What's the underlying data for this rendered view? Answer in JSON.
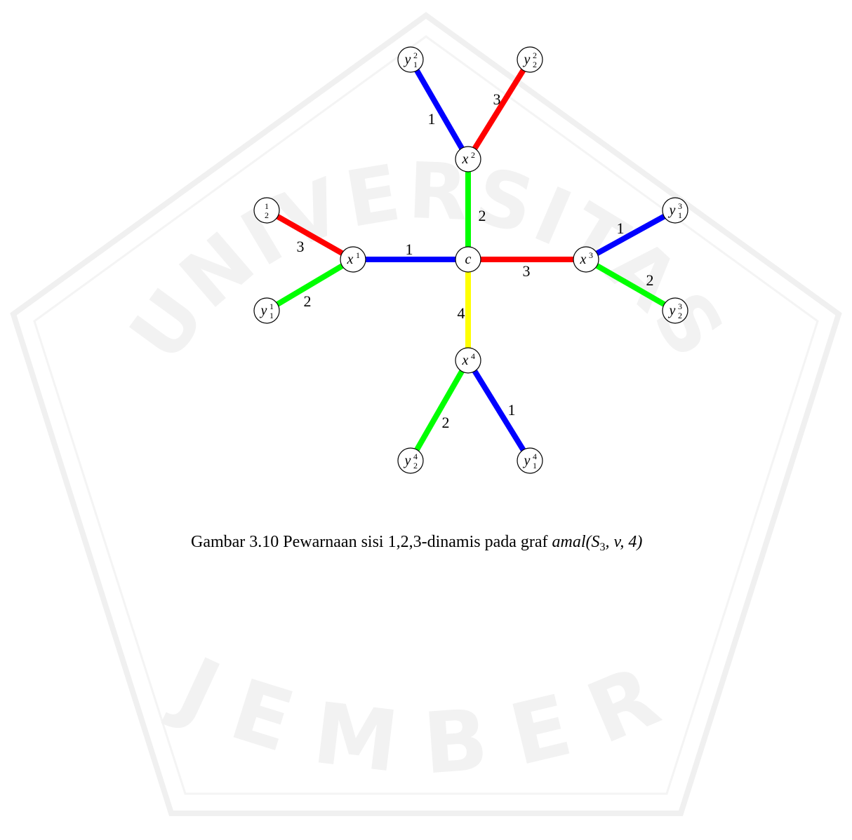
{
  "watermark": {
    "top": "UNIVERSITAS",
    "bottom": "JEMBER"
  },
  "nodes": [
    {
      "base": "c"
    },
    {
      "base": "x",
      "sup": "1"
    },
    {
      "base": "x",
      "sup": "2"
    },
    {
      "base": "x",
      "sup": "3"
    },
    {
      "base": "x",
      "sup": "4"
    },
    {
      "base": "y",
      "sub": "1",
      "sup": "2"
    },
    {
      "base": "y",
      "sub": "2",
      "sup": "2"
    },
    {
      "sup": "1",
      "sub": "2"
    },
    {
      "base": "y",
      "sub": "1",
      "sup": "1"
    },
    {
      "base": "y",
      "sub": "1",
      "sup": "3"
    },
    {
      "base": "y",
      "sub": "2",
      "sup": "3"
    },
    {
      "base": "y",
      "sub": "2",
      "sup": "4"
    },
    {
      "base": "y",
      "sub": "1",
      "sup": "4"
    }
  ],
  "edges": [
    {
      "from": 1,
      "to": 0,
      "label": "1",
      "color": "#0000ff"
    },
    {
      "from": 0,
      "to": 2,
      "label": "2",
      "color": "#00ff00"
    },
    {
      "from": 0,
      "to": 3,
      "label": "3",
      "color": "#ff0000"
    },
    {
      "from": 0,
      "to": 4,
      "label": "4",
      "color": "#ffff00"
    },
    {
      "from": 2,
      "to": 5,
      "label": "1",
      "color": "#0000ff"
    },
    {
      "from": 2,
      "to": 6,
      "label": "3",
      "color": "#ff0000"
    },
    {
      "from": 1,
      "to": 7,
      "label": "3",
      "color": "#ff0000"
    },
    {
      "from": 1,
      "to": 8,
      "label": "2",
      "color": "#00ff00"
    },
    {
      "from": 3,
      "to": 9,
      "label": "1",
      "color": "#0000ff"
    },
    {
      "from": 3,
      "to": 10,
      "label": "2",
      "color": "#00ff00"
    },
    {
      "from": 4,
      "to": 11,
      "label": "2",
      "color": "#00ff00"
    },
    {
      "from": 4,
      "to": 12,
      "label": "1",
      "color": "#0000ff"
    }
  ],
  "caption": {
    "text": "Gambar 3.10 Pewarnaan sisi 1,2,3-dinamis pada graf",
    "math": "amal(S",
    "math_sub": "3",
    "math_end": ", v, 4)"
  }
}
